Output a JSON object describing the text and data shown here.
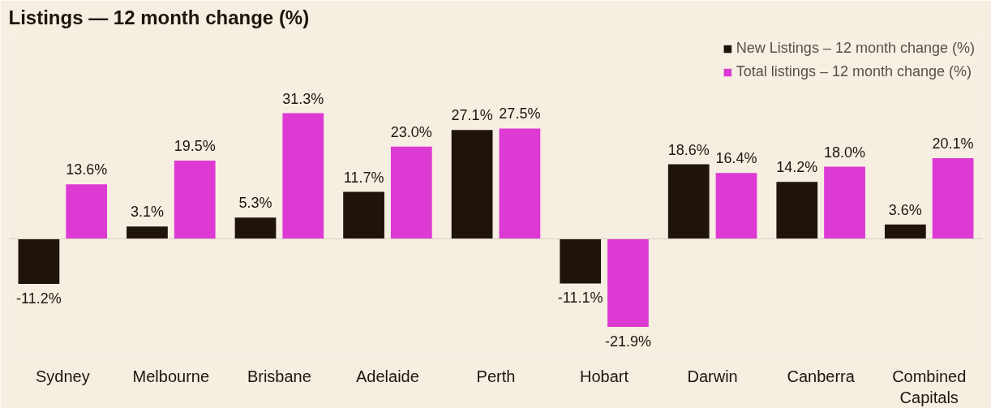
{
  "chart_data": {
    "type": "bar",
    "title": "Listings — 12 month change (%)",
    "categories": [
      "Sydney",
      "Melbourne",
      "Brisbane",
      "Adelaide",
      "Perth",
      "Hobart",
      "Darwin",
      "Canberra",
      "Combined Capitals"
    ],
    "series": [
      {
        "name": "New Listings – 12 month change (%)",
        "color": "#1e140a",
        "values": [
          -11.2,
          3.1,
          5.3,
          11.7,
          27.1,
          -11.1,
          18.6,
          14.2,
          3.6
        ],
        "value_labels": [
          "-11.2%",
          "3.1%",
          "5.3%",
          "11.7%",
          "27.1%",
          "-11.1%",
          "18.6%",
          "14.2%",
          "3.6%"
        ]
      },
      {
        "name": "Total listings – 12 month change (%)",
        "color": "#dd3ad3",
        "values": [
          13.6,
          19.5,
          31.3,
          23.0,
          27.5,
          -21.9,
          16.4,
          18.0,
          20.1
        ],
        "value_labels": [
          "13.6%",
          "19.5%",
          "31.3%",
          "23.0%",
          "27.5%",
          "-21.9%",
          "16.4%",
          "18.0%",
          "20.1%"
        ]
      }
    ],
    "legend": "top right",
    "grid": false
  }
}
